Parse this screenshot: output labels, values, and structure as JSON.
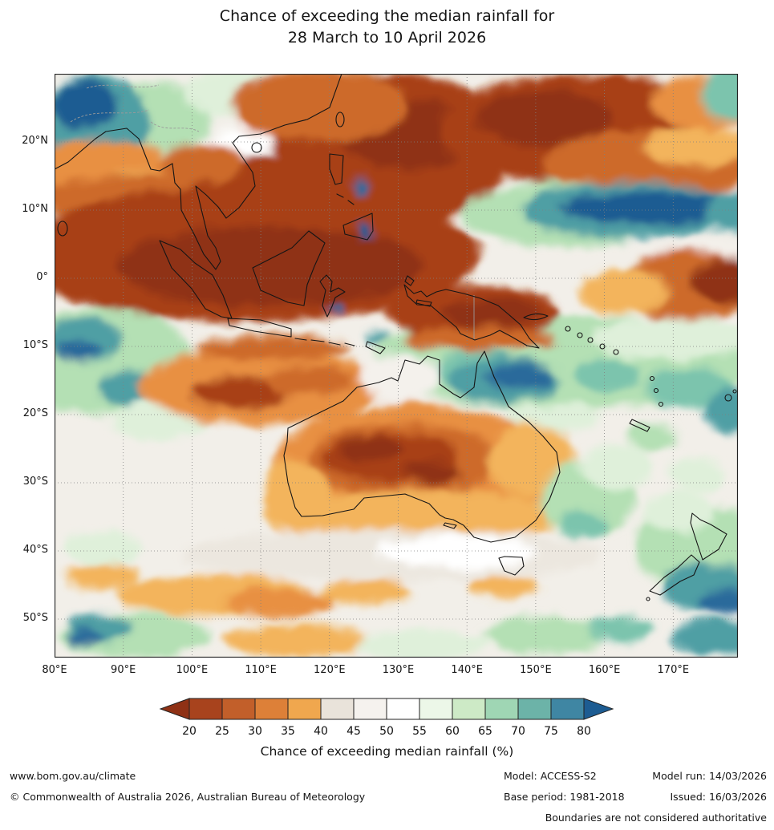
{
  "title": {
    "line1": "Chance of exceeding the median rainfall for",
    "line2": "28 March to 10 April 2026"
  },
  "map": {
    "lat_ticks": [
      "20°N",
      "10°N",
      "0°",
      "10°S",
      "20°S",
      "30°S",
      "40°S",
      "50°S"
    ],
    "lon_ticks": [
      "80°E",
      "90°E",
      "100°E",
      "110°E",
      "120°E",
      "130°E",
      "140°E",
      "150°E",
      "160°E",
      "170°E"
    ]
  },
  "colorbar": {
    "title": "Chance of exceeding median rainfall (%)",
    "tick_labels": [
      "20",
      "25",
      "30",
      "35",
      "40",
      "45",
      "50",
      "55",
      "60",
      "65",
      "70",
      "75",
      "80"
    ],
    "segment_colors": [
      "#a8431d",
      "#c25f2a",
      "#dd8038",
      "#f0a74e",
      "#e9e3da",
      "#f5f2ee",
      "#ffffff",
      "#ecf7e8",
      "#cdeac6",
      "#9fd6b4",
      "#6cb3a8",
      "#3f86a3"
    ],
    "arrow_left_color": "#8f3115",
    "arrow_right_color": "#1d5c92"
  },
  "footer": {
    "website": "www.bom.gov.au/climate",
    "copyright": "© Commonwealth of Australia 2026, Australian Bureau of Meteorology",
    "model_label": "Model: ACCESS-S2",
    "model_run": "Model run: 14/03/2026",
    "base_period": "Base period: 1981-2018",
    "issued": "Issued: 16/03/2026",
    "disclaimer": "Boundaries are not considered authoritative"
  }
}
